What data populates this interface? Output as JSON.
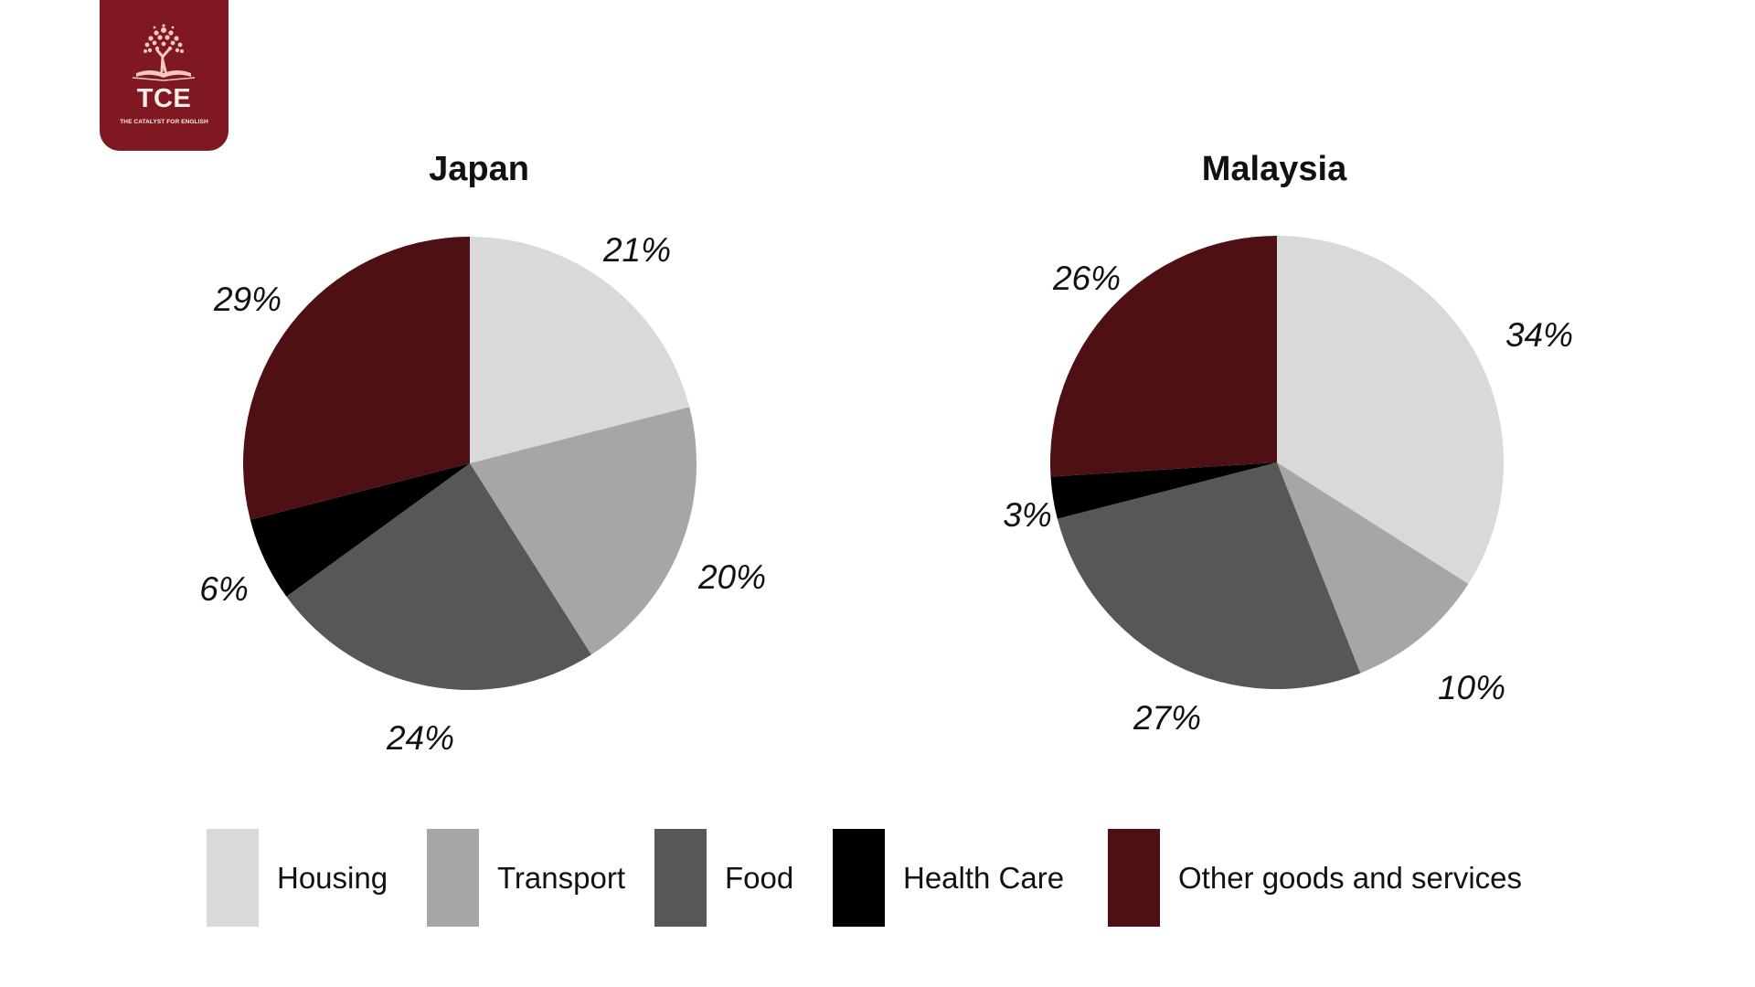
{
  "logo": {
    "text": "TCE",
    "subtitle": "THE CATALYST FOR ENGLISH",
    "background": "#7f1820"
  },
  "legend": [
    {
      "key": "housing",
      "label": "Housing",
      "color": "#d9d9d9"
    },
    {
      "key": "transport",
      "label": "Transport",
      "color": "#a6a6a6"
    },
    {
      "key": "food",
      "label": "Food",
      "color": "#575757"
    },
    {
      "key": "health_care",
      "label": "Health Care",
      "color": "#000000"
    },
    {
      "key": "other",
      "label": "Other goods and services",
      "color": "#4f1014"
    }
  ],
  "charts": [
    {
      "title": "Japan",
      "labels": {
        "housing": "21%",
        "transport": "20%",
        "food": "24%",
        "health_care": "6%",
        "other": "29%"
      }
    },
    {
      "title": "Malaysia",
      "labels": {
        "housing": "34%",
        "transport": "10%",
        "food": "27%",
        "health_care": "3%",
        "other": "26%"
      }
    }
  ],
  "chart_data": [
    {
      "type": "pie",
      "title": "Japan",
      "categories": [
        "Housing",
        "Transport",
        "Food",
        "Health Care",
        "Other goods and services"
      ],
      "values": [
        21,
        20,
        24,
        6,
        29
      ],
      "colors": [
        "#d9d9d9",
        "#a6a6a6",
        "#575757",
        "#000000",
        "#4f1014"
      ],
      "start_angle": "12 o'clock, clockwise",
      "legend_position": "bottom"
    },
    {
      "type": "pie",
      "title": "Malaysia",
      "categories": [
        "Housing",
        "Transport",
        "Food",
        "Health Care",
        "Other goods and services"
      ],
      "values": [
        34,
        10,
        27,
        3,
        26
      ],
      "colors": [
        "#d9d9d9",
        "#a6a6a6",
        "#575757",
        "#000000",
        "#4f1014"
      ],
      "start_angle": "12 o'clock, clockwise",
      "legend_position": "bottom"
    }
  ]
}
